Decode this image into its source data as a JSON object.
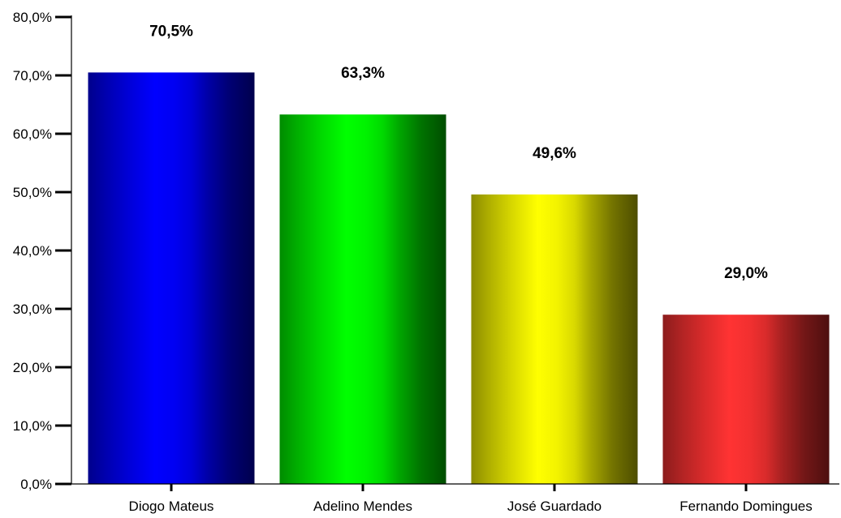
{
  "chart_data": {
    "type": "bar",
    "title": "",
    "xlabel": "",
    "ylabel": "",
    "categories": [
      "Diogo Mateus",
      "Adelino Mendes",
      "José Guardado",
      "Fernando Domingues"
    ],
    "values": [
      70.5,
      63.3,
      49.6,
      29.0
    ],
    "value_labels": [
      "70,5%",
      "63,3%",
      "49,6%",
      "29,0%"
    ],
    "bar_colors": [
      "#0000ff",
      "#00ff00",
      "#ffff00",
      "#ff3333"
    ],
    "ylim": [
      0,
      80
    ],
    "yticks": [
      0,
      10,
      20,
      30,
      40,
      50,
      60,
      70,
      80
    ],
    "ytick_labels": [
      "0,0%",
      "10,0%",
      "20,0%",
      "30,0%",
      "40,0%",
      "50,0%",
      "60,0%",
      "70,0%",
      "80,0%"
    ],
    "grid": false,
    "legend": "none"
  }
}
